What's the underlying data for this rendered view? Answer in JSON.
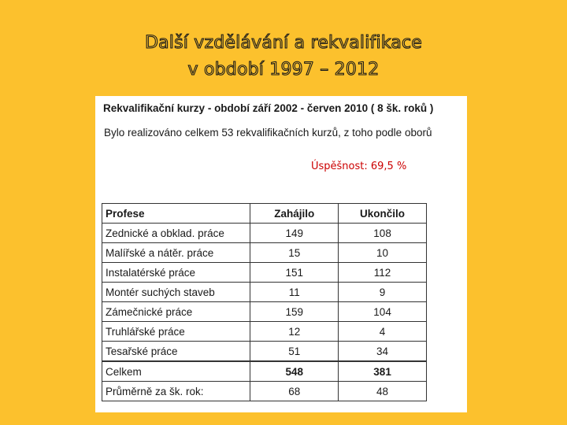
{
  "title": {
    "line1": "Další vzdělávání a rekvalifikace",
    "line2": "v období 1997 – 2012"
  },
  "panel": {
    "heading": "Rekvalifikační  kurzy - období  září 2002 - červen 2010  ( 8 šk. roků )",
    "description": "Bylo realizováno celkem 53 rekvalifikačních kurzů, z toho podle oborů",
    "success": "Úspěšnost: 69,5 %"
  },
  "table": {
    "headers": [
      "Profese",
      "Zahájilo",
      "Ukončilo"
    ],
    "rows": [
      [
        "Zednické a obklad. práce",
        "149",
        "108"
      ],
      [
        "Malířské a nátěr. práce",
        "15",
        "10"
      ],
      [
        "Instalatérské práce",
        "151",
        "112"
      ],
      [
        "Montér suchých staveb",
        "11",
        "9"
      ],
      [
        "Zámečnické práce",
        "159",
        "104"
      ],
      [
        "Truhlářské práce",
        "12",
        "4"
      ],
      [
        "Tesařské práce",
        "51",
        "34"
      ]
    ],
    "total": [
      "Celkem",
      "548",
      "381"
    ],
    "average": [
      "Průměrně za šk. rok:",
      "68",
      "48"
    ]
  },
  "colors": {
    "background": "#FCC12D",
    "success_text": "#CC0000"
  }
}
